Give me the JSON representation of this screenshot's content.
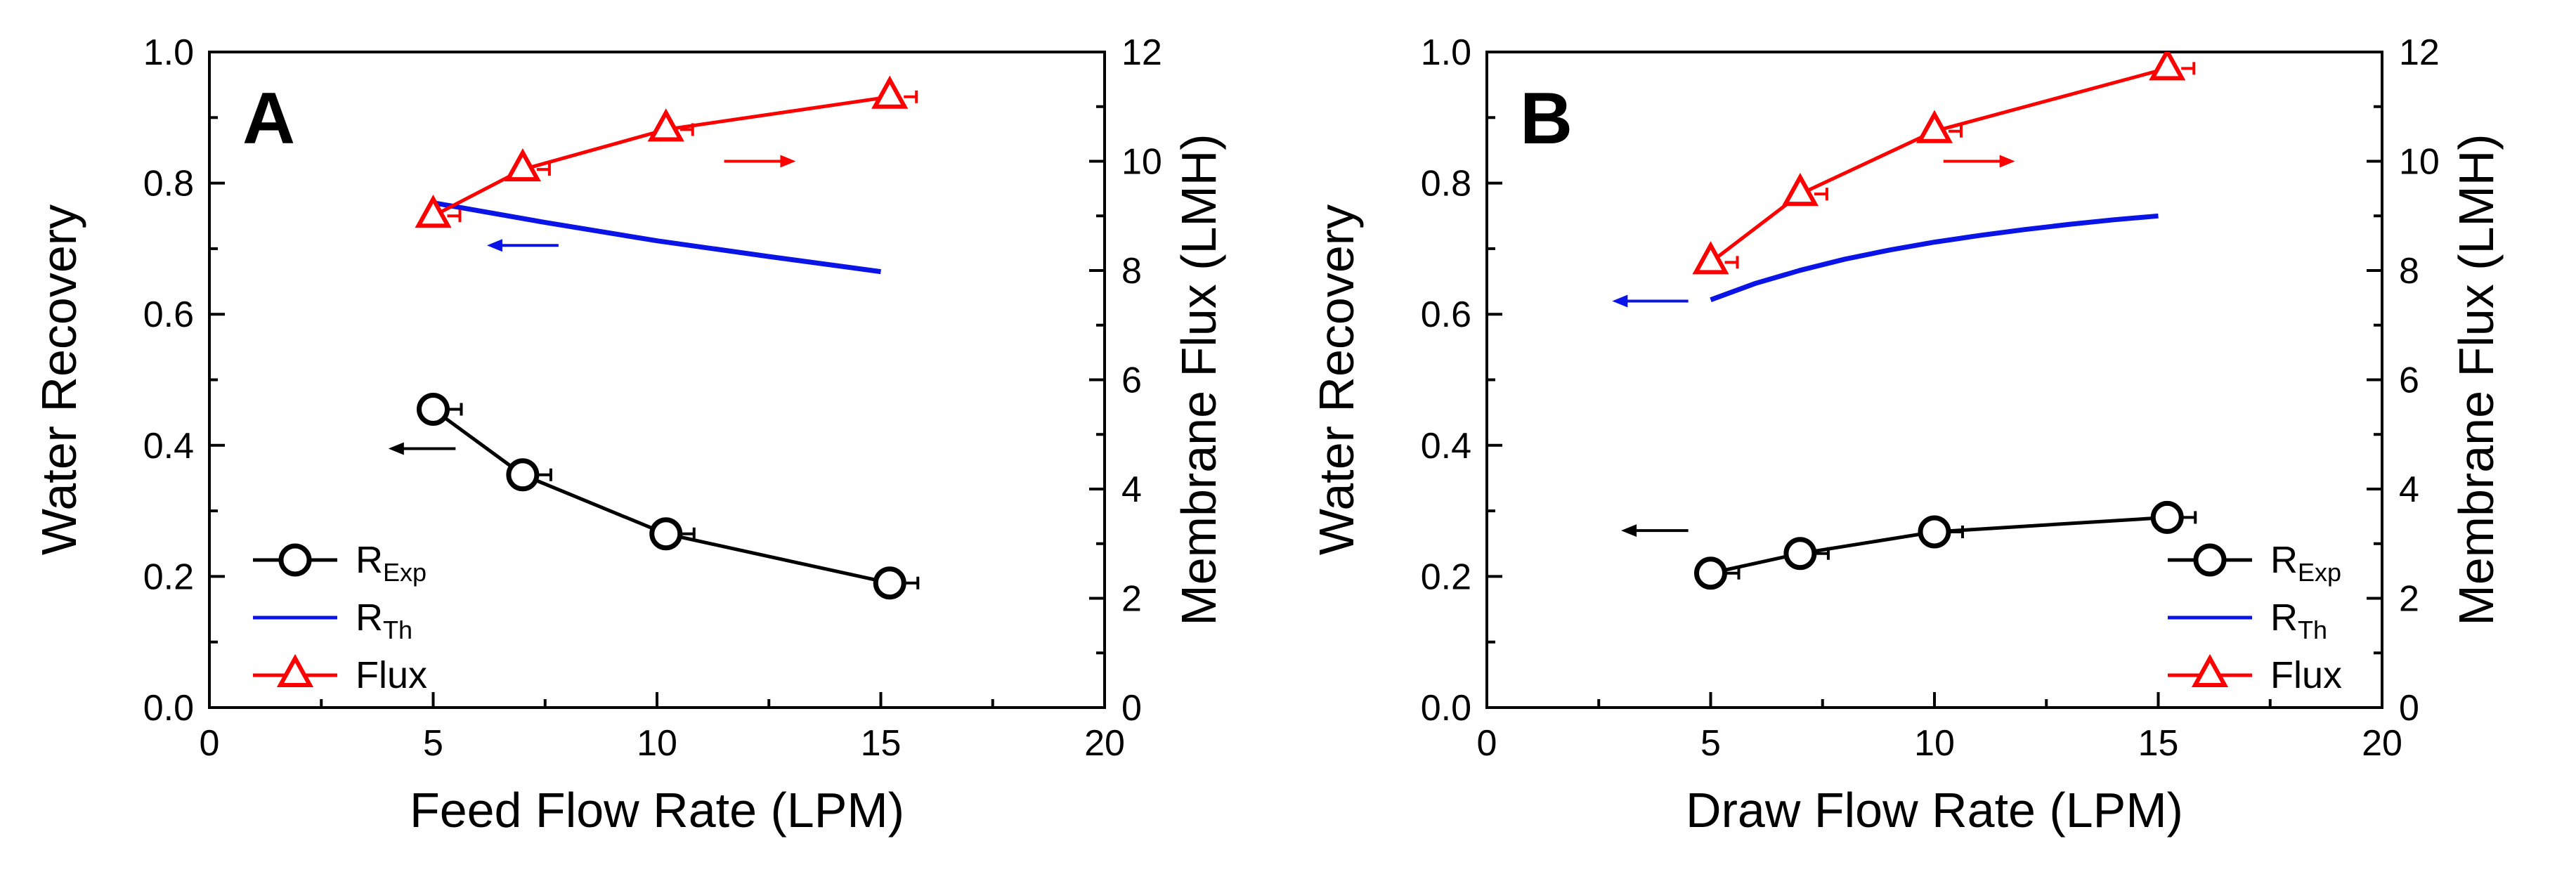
{
  "chart_data": [
    {
      "type": "line",
      "panel_label": "A",
      "xlabel": "Feed Flow Rate (LPM)",
      "ylabel": "Water Recovery",
      "y2label": "Membrane Flux (LMH)",
      "xlim": [
        0,
        20
      ],
      "ylim": [
        0.0,
        1.0
      ],
      "y2lim": [
        0,
        12
      ],
      "x_ticks": [
        "0",
        "5",
        "10",
        "15",
        "20"
      ],
      "y_ticks": [
        "0.0",
        "0.2",
        "0.4",
        "0.6",
        "0.8",
        "1.0"
      ],
      "y2_ticks": [
        "0",
        "2",
        "4",
        "6",
        "8",
        "10",
        "12"
      ],
      "series": [
        {
          "name": "R",
          "sub": "Exp",
          "axis": "left",
          "color": "#000000",
          "marker": "circle",
          "x": [
            5.0,
            7.0,
            10.2,
            15.2
          ],
          "values": [
            0.455,
            0.355,
            0.265,
            0.19
          ]
        },
        {
          "name": "R",
          "sub": "Th",
          "axis": "left",
          "color": "#0a14e6",
          "marker": "none",
          "x": [
            5.0,
            7.5,
            10.0,
            12.5,
            15.0
          ],
          "values": [
            0.77,
            0.74,
            0.712,
            0.688,
            0.665
          ]
        },
        {
          "name": "Flux",
          "sub": "",
          "axis": "right",
          "color": "#ff0000",
          "marker": "triangle",
          "x": [
            5.0,
            7.0,
            10.2,
            15.2
          ],
          "values": [
            9.0,
            9.85,
            10.58,
            11.18
          ]
        }
      ],
      "arrows": [
        {
          "color": "#000000",
          "x": [
            5.5,
            4.0
          ],
          "y": [
            0.395,
            0.395
          ],
          "axis": "left"
        },
        {
          "color": "#0a14e6",
          "x": [
            7.8,
            6.2
          ],
          "y": [
            0.705,
            0.705
          ],
          "axis": "left"
        },
        {
          "color": "#ff0000",
          "x": [
            11.5,
            13.1
          ],
          "y": [
            10.0,
            10.0
          ],
          "axis": "right"
        }
      ],
      "legend_position": "bottom-left"
    },
    {
      "type": "line",
      "panel_label": "B",
      "xlabel": "Draw Flow Rate (LPM)",
      "ylabel": "Water Recovery",
      "y2label": "Membrane Flux (LMH)",
      "xlim": [
        0,
        20
      ],
      "ylim": [
        0.0,
        1.0
      ],
      "y2lim": [
        0,
        12
      ],
      "x_ticks": [
        "0",
        "5",
        "10",
        "15",
        "20"
      ],
      "y_ticks": [
        "0.0",
        "0.2",
        "0.4",
        "0.6",
        "0.8",
        "1.0"
      ],
      "y2_ticks": [
        "0",
        "2",
        "4",
        "6",
        "8",
        "10",
        "12"
      ],
      "series": [
        {
          "name": "R",
          "sub": "Exp",
          "axis": "left",
          "color": "#000000",
          "marker": "circle",
          "x": [
            5.0,
            7.0,
            10.0,
            15.2
          ],
          "values": [
            0.205,
            0.235,
            0.268,
            0.29
          ]
        },
        {
          "name": "R",
          "sub": "Th",
          "axis": "left",
          "color": "#0a14e6",
          "marker": "none",
          "x": [
            5.0,
            6.0,
            7.0,
            8.0,
            9.0,
            10.0,
            11.0,
            12.0,
            13.0,
            14.0,
            15.0
          ],
          "values": [
            0.622,
            0.647,
            0.667,
            0.684,
            0.698,
            0.71,
            0.72,
            0.729,
            0.737,
            0.744,
            0.75
          ]
        },
        {
          "name": "Flux",
          "sub": "",
          "axis": "right",
          "color": "#ff0000",
          "marker": "triangle",
          "x": [
            5.0,
            7.0,
            10.0,
            15.2
          ],
          "values": [
            8.15,
            9.4,
            10.55,
            11.7
          ]
        }
      ],
      "arrows": [
        {
          "color": "#000000",
          "x": [
            4.5,
            3.0
          ],
          "y": [
            0.27,
            0.27
          ],
          "axis": "left"
        },
        {
          "color": "#0a14e6",
          "x": [
            4.5,
            2.8
          ],
          "y": [
            0.62,
            0.62
          ],
          "axis": "left"
        },
        {
          "color": "#ff0000",
          "x": [
            10.2,
            11.8
          ],
          "y": [
            10.0,
            10.0
          ],
          "axis": "right"
        }
      ],
      "legend_position": "bottom-right"
    }
  ]
}
